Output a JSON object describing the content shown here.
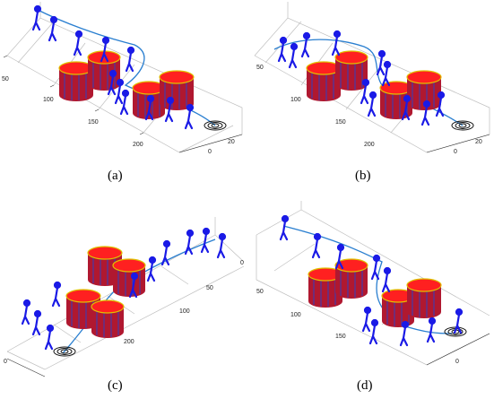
{
  "figure": {
    "panels": [
      {
        "caption": "(a)",
        "tick_labels": [
          "50",
          "100",
          "150",
          "200",
          "0",
          "20"
        ]
      },
      {
        "caption": "(b)",
        "tick_labels": [
          "50",
          "100",
          "150",
          "200",
          "0",
          "20"
        ]
      },
      {
        "caption": "(c)",
        "tick_labels": [
          "50",
          "100",
          "200",
          "0",
          "0"
        ]
      },
      {
        "caption": "(d)",
        "tick_labels": [
          "50",
          "100",
          "150",
          "0"
        ]
      }
    ],
    "colors": {
      "crowd": "#1a1ae6",
      "cylinder_top": "#ff2020",
      "cylinder_side": "#b01830",
      "cylinder_stripe": "#3040c0",
      "cylinder_rim": "#e0c000",
      "path": "#2a7fd0",
      "goal": "#111111",
      "grid": "#bfbfbf"
    }
  }
}
